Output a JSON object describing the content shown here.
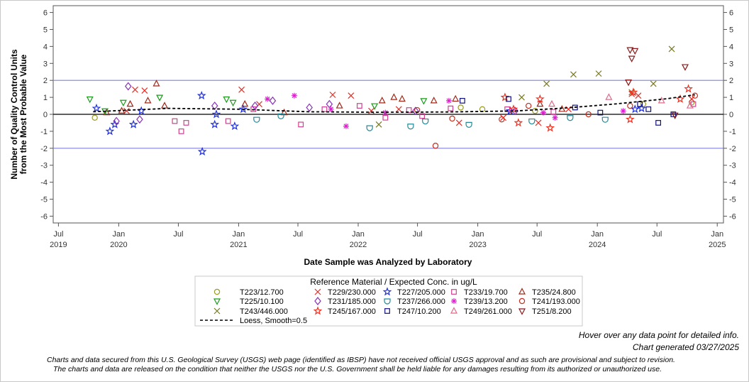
{
  "chart_data": {
    "type": "scatter",
    "ylabel": [
      "Number of Quality Control Units",
      "from the Most Probable Value"
    ],
    "xlabel": "Date Sample was Analyzed by Laboratory",
    "ylim": [
      -6.4,
      6.4
    ],
    "xlim": [
      "2019-06-15",
      "2025-01-20"
    ],
    "y_ticks": [
      -6,
      -5,
      -4,
      -3,
      -2,
      -1,
      0,
      1,
      2,
      3,
      4,
      5,
      6
    ],
    "x_ticks": [
      {
        "date": "2019-07-01",
        "label": "Jul",
        "year": "2019"
      },
      {
        "date": "2020-01-01",
        "label": "Jan",
        "year": "2020"
      },
      {
        "date": "2020-07-01",
        "label": "Jul",
        "year": ""
      },
      {
        "date": "2021-01-01",
        "label": "Jan",
        "year": "2021"
      },
      {
        "date": "2021-07-01",
        "label": "Jul",
        "year": ""
      },
      {
        "date": "2022-01-01",
        "label": "Jan",
        "year": "2022"
      },
      {
        "date": "2022-07-01",
        "label": "Jul",
        "year": ""
      },
      {
        "date": "2023-01-01",
        "label": "Jan",
        "year": "2023"
      },
      {
        "date": "2023-07-01",
        "label": "Jul",
        "year": ""
      },
      {
        "date": "2024-01-01",
        "label": "Jan",
        "year": "2024"
      },
      {
        "date": "2024-07-01",
        "label": "Jul",
        "year": ""
      },
      {
        "date": "2025-01-01",
        "label": "Jan",
        "year": "2025"
      }
    ],
    "reference_lines": [
      {
        "y": 2,
        "color": "#8080d8"
      },
      {
        "y": 0,
        "color": "#000000"
      },
      {
        "y": -2,
        "color": "#8080d8"
      }
    ],
    "grid": false,
    "legend_title": "Reference Material / Expected Conc. in ug/L",
    "legend_position": "bottom",
    "series": [
      {
        "name": "T223/12.700",
        "marker": "circle",
        "color": "#9a9a1e",
        "points": [
          [
            "2019-10-20",
            -0.2
          ],
          [
            "2022-11-10",
            0.4
          ],
          [
            "2023-01-15",
            0.3
          ],
          [
            "2023-06-25",
            0.2
          ],
          [
            "2024-05-20",
            0.6
          ],
          [
            "2024-10-15",
            0.7
          ]
        ]
      },
      {
        "name": "T229/230.000",
        "marker": "x",
        "color": "#e0302a",
        "points": [
          [
            "2020-01-25",
            0.2
          ],
          [
            "2020-02-20",
            1.45
          ],
          [
            "2020-03-20",
            1.4
          ],
          [
            "2021-01-10",
            1.45
          ],
          [
            "2021-03-05",
            0.6
          ],
          [
            "2021-10-15",
            1.15
          ],
          [
            "2021-12-10",
            1.1
          ],
          [
            "2022-02-10",
            0.2
          ],
          [
            "2022-05-05",
            0.3
          ],
          [
            "2022-11-05",
            -0.5
          ],
          [
            "2023-03-20",
            -0.2
          ],
          [
            "2023-07-05",
            -0.5
          ],
          [
            "2023-10-05",
            0.3
          ],
          [
            "2024-04-15",
            1.2
          ],
          [
            "2024-05-05",
            1.1
          ],
          [
            "2024-10-15",
            0.9
          ]
        ]
      },
      {
        "name": "T227/205.000",
        "marker": "star",
        "color": "#2030e0",
        "points": [
          [
            "2019-10-25",
            0.35
          ],
          [
            "2019-12-05",
            -1.0
          ],
          [
            "2019-12-20",
            -0.6
          ],
          [
            "2020-02-15",
            -0.6
          ],
          [
            "2020-03-10",
            0.2
          ],
          [
            "2020-09-10",
            1.1
          ],
          [
            "2020-09-12",
            -2.2
          ],
          [
            "2020-10-20",
            -0.6
          ],
          [
            "2020-10-25",
            0.0
          ],
          [
            "2020-12-20",
            -0.7
          ],
          [
            "2021-01-15",
            0.3
          ],
          [
            "2023-04-10",
            0.2
          ],
          [
            "2024-04-25",
            0.3
          ],
          [
            "2024-05-15",
            0.35
          ]
        ]
      },
      {
        "name": "T233/19.700",
        "marker": "square",
        "color": "#d04090",
        "points": [
          [
            "2020-06-20",
            -0.4
          ],
          [
            "2020-07-10",
            -1.0
          ],
          [
            "2020-07-25",
            -0.5
          ],
          [
            "2020-11-30",
            -0.4
          ],
          [
            "2021-02-15",
            0.3
          ],
          [
            "2021-07-10",
            -0.6
          ],
          [
            "2021-09-20",
            0.3
          ],
          [
            "2022-01-05",
            0.5
          ],
          [
            "2022-03-25",
            -0.2
          ],
          [
            "2022-06-05",
            0.25
          ],
          [
            "2022-07-15",
            -0.1
          ],
          [
            "2022-10-10",
            0.35
          ],
          [
            "2023-04-01",
            0.3
          ],
          [
            "2023-08-20",
            0.15
          ],
          [
            "2024-10-20",
            0.6
          ]
        ]
      },
      {
        "name": "T235/24.800",
        "marker": "triangle",
        "color": "#a02818",
        "points": [
          [
            "2019-11-25",
            0.1
          ],
          [
            "2020-01-10",
            0.2
          ],
          [
            "2020-02-05",
            0.6
          ],
          [
            "2020-03-30",
            0.8
          ],
          [
            "2020-04-25",
            1.8
          ],
          [
            "2020-05-20",
            0.5
          ],
          [
            "2021-01-20",
            0.6
          ],
          [
            "2021-05-20",
            0.1
          ],
          [
            "2021-11-05",
            0.5
          ],
          [
            "2022-03-15",
            0.8
          ],
          [
            "2022-04-20",
            1.0
          ],
          [
            "2022-05-15",
            0.9
          ],
          [
            "2022-08-20",
            0.8
          ],
          [
            "2022-10-25",
            0.9
          ],
          [
            "2023-07-10",
            0.6
          ],
          [
            "2023-09-15",
            0.3
          ]
        ]
      },
      {
        "name": "T225/10.100",
        "marker": "triangle-down",
        "color": "#1a9a1a",
        "points": [
          [
            "2019-10-05",
            0.9
          ],
          [
            "2019-11-20",
            0.2
          ],
          [
            "2020-01-15",
            0.7
          ],
          [
            "2020-05-05",
            1.0
          ],
          [
            "2020-11-25",
            0.9
          ],
          [
            "2020-12-15",
            0.7
          ],
          [
            "2022-02-20",
            0.5
          ],
          [
            "2022-07-20",
            0.8
          ]
        ]
      },
      {
        "name": "T231/185.000",
        "marker": "diamond",
        "color": "#8830b8",
        "points": [
          [
            "2019-12-25",
            -0.4
          ],
          [
            "2020-01-30",
            1.65
          ],
          [
            "2020-03-05",
            -0.3
          ],
          [
            "2020-10-20",
            0.5
          ],
          [
            "2021-02-20",
            0.5
          ],
          [
            "2021-04-15",
            0.8
          ],
          [
            "2021-08-05",
            0.4
          ],
          [
            "2021-10-05",
            0.6
          ],
          [
            "2022-06-25",
            0.2
          ],
          [
            "2023-04-25",
            0.2
          ]
        ]
      },
      {
        "name": "T237/266.000",
        "marker": "cup",
        "color": "#208a9a",
        "points": [
          [
            "2021-02-25",
            -0.3
          ],
          [
            "2021-05-10",
            -0.1
          ],
          [
            "2022-02-05",
            -0.8
          ],
          [
            "2022-06-10",
            -0.7
          ],
          [
            "2022-07-25",
            -0.4
          ],
          [
            "2022-12-05",
            -0.6
          ],
          [
            "2023-06-15",
            -0.4
          ],
          [
            "2023-10-10",
            -0.2
          ],
          [
            "2024-01-25",
            -0.3
          ]
        ]
      },
      {
        "name": "T239/13.200",
        "marker": "asterisk",
        "color": "#e020d0",
        "points": [
          [
            "2021-03-30",
            0.9
          ],
          [
            "2021-06-20",
            1.1
          ],
          [
            "2021-10-10",
            0.3
          ],
          [
            "2021-11-25",
            -0.7
          ],
          [
            "2022-03-25",
            0.1
          ],
          [
            "2022-10-05",
            0.8
          ],
          [
            "2023-07-20",
            0.1
          ],
          [
            "2023-08-25",
            -0.2
          ],
          [
            "2024-03-20",
            0.2
          ]
        ]
      },
      {
        "name": "T241/193.000",
        "marker": "circle",
        "color": "#c03020",
        "points": [
          [
            "2022-06-30",
            0.25
          ],
          [
            "2022-08-25",
            -1.85
          ],
          [
            "2022-10-15",
            -0.25
          ],
          [
            "2023-03-15",
            -0.3
          ],
          [
            "2023-06-05",
            0.5
          ],
          [
            "2023-12-05",
            0.0
          ],
          [
            "2024-04-10",
            0.5
          ],
          [
            "2024-10-25",
            1.1
          ]
        ]
      },
      {
        "name": "T243/446.000",
        "marker": "x",
        "color": "#787820",
        "points": [
          [
            "2022-03-05",
            -0.6
          ],
          [
            "2023-05-15",
            1.0
          ],
          [
            "2023-07-30",
            1.8
          ],
          [
            "2023-10-20",
            2.35
          ],
          [
            "2024-01-05",
            2.4
          ],
          [
            "2024-04-15",
            1.3
          ],
          [
            "2024-06-20",
            1.8
          ],
          [
            "2024-08-15",
            3.85
          ]
        ]
      },
      {
        "name": "T245/167.000",
        "marker": "star",
        "color": "#f03020",
        "points": [
          [
            "2023-03-25",
            1.0
          ],
          [
            "2023-04-20",
            0.3
          ],
          [
            "2023-05-05",
            -0.5
          ],
          [
            "2023-07-10",
            0.9
          ],
          [
            "2023-08-10",
            -0.8
          ],
          [
            "2024-04-10",
            -0.3
          ],
          [
            "2024-04-20",
            1.3
          ],
          [
            "2024-09-10",
            0.9
          ],
          [
            "2024-10-05",
            1.5
          ]
        ]
      },
      {
        "name": "T247/10.200",
        "marker": "square",
        "color": "#10107a",
        "points": [
          [
            "2022-11-15",
            0.8
          ],
          [
            "2023-04-05",
            0.9
          ],
          [
            "2023-10-25",
            0.4
          ],
          [
            "2024-01-10",
            0.1
          ],
          [
            "2024-05-10",
            0.6
          ],
          [
            "2024-06-05",
            0.3
          ],
          [
            "2024-07-05",
            -0.5
          ],
          [
            "2024-08-20",
            0.0
          ]
        ]
      },
      {
        "name": "T249/261.000",
        "marker": "triangle",
        "color": "#e06a8a",
        "points": [
          [
            "2023-08-15",
            0.6
          ],
          [
            "2024-02-05",
            1.0
          ],
          [
            "2024-07-15",
            0.8
          ],
          [
            "2024-10-10",
            0.5
          ]
        ]
      },
      {
        "name": "T251/8.200",
        "marker": "triangle-down",
        "color": "#8a1818",
        "points": [
          [
            "2024-04-10",
            3.8
          ],
          [
            "2024-04-15",
            3.3
          ],
          [
            "2024-04-25",
            3.75
          ],
          [
            "2024-04-05",
            1.9
          ],
          [
            "2024-09-25",
            2.8
          ],
          [
            "2024-08-25",
            -0.05
          ]
        ]
      }
    ],
    "loess": {
      "name": "Loess, Smooth=0.5",
      "style": "dashed",
      "color": "#000000",
      "points": [
        [
          "2019-10-15",
          0.15
        ],
        [
          "2020-06-01",
          0.35
        ],
        [
          "2021-01-01",
          0.3
        ],
        [
          "2021-08-01",
          0.15
        ],
        [
          "2022-03-01",
          0.12
        ],
        [
          "2022-10-01",
          0.14
        ],
        [
          "2023-05-01",
          0.2
        ],
        [
          "2023-10-01",
          0.38
        ],
        [
          "2024-03-01",
          0.62
        ],
        [
          "2024-08-01",
          0.92
        ],
        [
          "2024-10-25",
          1.15
        ]
      ]
    }
  },
  "notes": {
    "hover": "Hover over any data point for detailed info.",
    "generated": "Chart generated 03/27/2025",
    "disclaimer_1": "Charts and data secured from this U.S. Geological Survey (USGS) web page (identified as IBSP) have not received official USGS approval and as such are provisional and subject to revision.",
    "disclaimer_2": "The charts and data are released on the condition that neither the USGS nor the U.S. Government shall be held liable for any damages resulting from its authorized or unauthorized use."
  }
}
